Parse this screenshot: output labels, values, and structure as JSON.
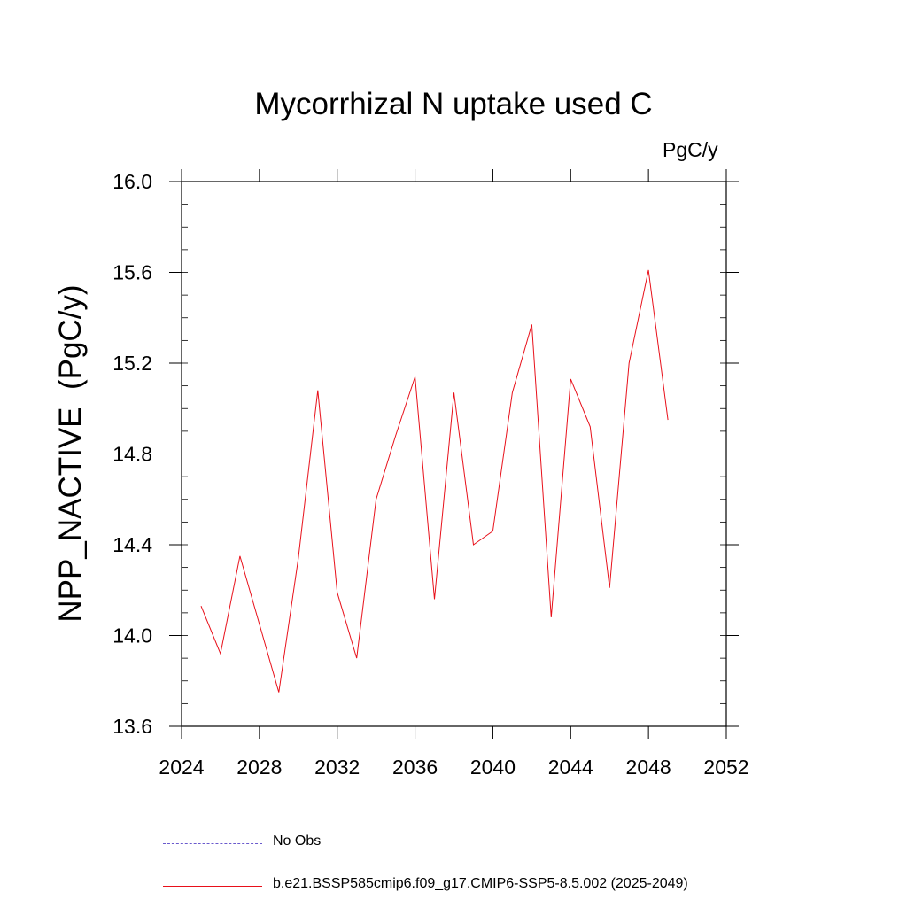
{
  "chart_data": {
    "type": "line",
    "title": "Mycorrhizal N uptake used C",
    "units_label": "PgC/y",
    "ylabel": "NPP_NACTIVE  (PgC/y)",
    "xlabel": "",
    "xlim": [
      2024,
      2052
    ],
    "ylim": [
      13.6,
      16.0
    ],
    "x_ticks": [
      2024,
      2028,
      2032,
      2036,
      2040,
      2044,
      2048,
      2052
    ],
    "y_ticks": [
      13.6,
      14.0,
      14.4,
      14.8,
      15.2,
      15.6,
      16.0
    ],
    "x_tick_labels": [
      "2024",
      "2028",
      "2032",
      "2036",
      "2040",
      "2044",
      "2048",
      "2052"
    ],
    "y_tick_labels": [
      "13.6",
      "14.0",
      "14.4",
      "14.8",
      "15.2",
      "15.6",
      "16.0"
    ],
    "grid": false,
    "legend_position": "bottom",
    "series": [
      {
        "name": "b.e21.BSSP585cmip6.f09_g17.CMIP6-SSP5-8.5.002 (2025-2049)",
        "color": "#e8101a",
        "style": "solid",
        "x": [
          2025,
          2026,
          2027,
          2028,
          2029,
          2030,
          2031,
          2032,
          2033,
          2034,
          2035,
          2036,
          2037,
          2038,
          2039,
          2040,
          2041,
          2042,
          2043,
          2044,
          2045,
          2046,
          2047,
          2048,
          2049
        ],
        "values": [
          14.13,
          13.92,
          14.35,
          14.05,
          13.75,
          14.34,
          15.08,
          14.19,
          13.9,
          14.6,
          14.88,
          15.14,
          14.16,
          15.07,
          14.4,
          14.46,
          15.07,
          15.37,
          14.08,
          15.13,
          14.92,
          14.21,
          15.2,
          15.61,
          14.95
        ]
      }
    ],
    "legend": [
      {
        "label": "No Obs",
        "color": "#6a5acd",
        "style": "dashed"
      },
      {
        "label": "b.e21.BSSP585cmip6.f09_g17.CMIP6-SSP5-8.5.002 (2025-2049)",
        "color": "#e8101a",
        "style": "solid"
      }
    ]
  }
}
